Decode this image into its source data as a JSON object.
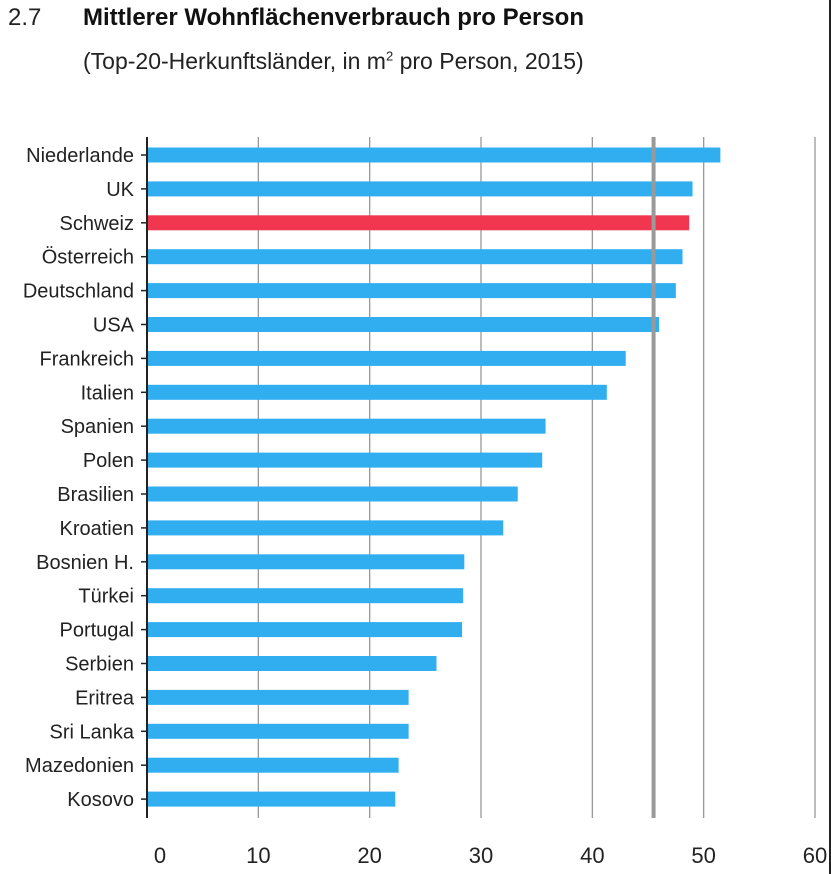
{
  "header": {
    "number": "2.7",
    "title": "Mittlerer Wohnflächenverbrauch pro Person",
    "subtitle_pre": "(Top-20-Herkunftsländer, in m",
    "subtitle_sup": "2",
    "subtitle_post": " pro Person, 2015)"
  },
  "colors": {
    "bar": "#30aef0",
    "highlight": "#f0374f",
    "reference": "#9a9a9a",
    "grid": "#999999"
  },
  "chart_data": {
    "type": "bar",
    "orientation": "horizontal",
    "title": "Mittlerer Wohnflächenverbrauch pro Person",
    "subtitle": "(Top-20-Herkunftsländer, in m2 pro Person, 2015)",
    "categories": [
      "Niederlande",
      "UK",
      "Schweiz",
      "Österreich",
      "Deutschland",
      "USA",
      "Frankreich",
      "Italien",
      "Spanien",
      "Polen",
      "Brasilien",
      "Kroatien",
      "Bosnien H.",
      "Türkei",
      "Portugal",
      "Serbien",
      "Eritrea",
      "Sri Lanka",
      "Mazedonien",
      "Kosovo"
    ],
    "values": [
      51.5,
      49.0,
      48.7,
      48.1,
      47.5,
      46.0,
      43.0,
      41.3,
      35.8,
      35.5,
      33.3,
      32.0,
      28.5,
      28.4,
      28.3,
      26.0,
      23.5,
      23.5,
      22.6,
      22.3
    ],
    "highlight": "Schweiz",
    "reference_line": 45.5,
    "xlim": [
      0,
      60
    ],
    "xticks": [
      0,
      10,
      20,
      30,
      40,
      50,
      60
    ],
    "grid": true
  }
}
